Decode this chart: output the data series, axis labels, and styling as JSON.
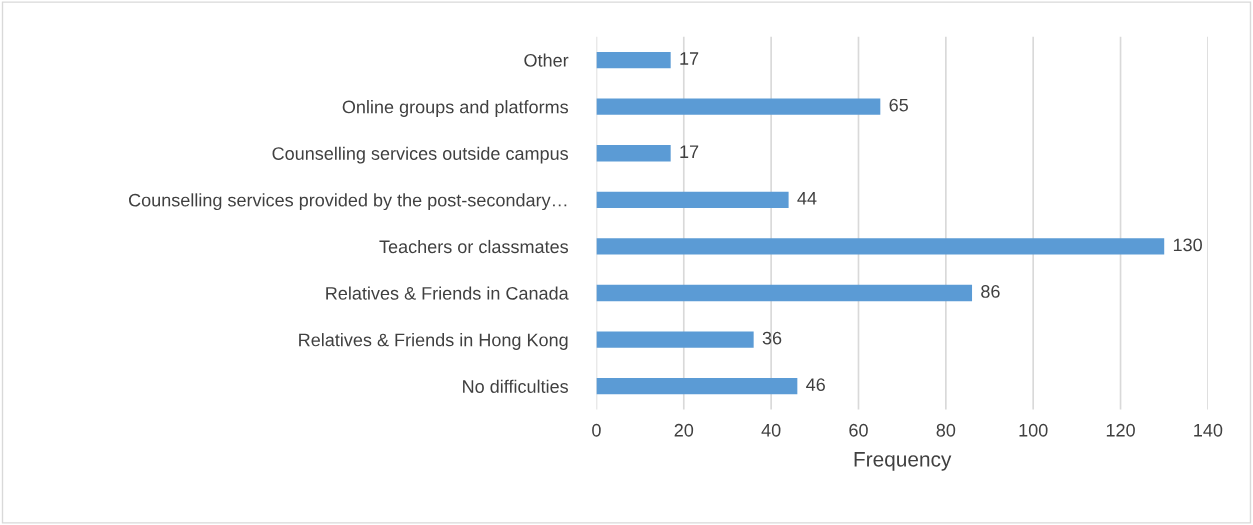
{
  "chart_data": {
    "type": "bar",
    "orientation": "horizontal",
    "xlabel": "Frequency",
    "categories": [
      "Other",
      "Online groups and platforms",
      "Counselling services outside campus",
      "Counselling services provided by the post-secondary…",
      "Teachers or classmates",
      "Relatives & Friends in Canada",
      "Relatives & Friends in Hong Kong",
      "No difficulties"
    ],
    "values": [
      17,
      65,
      17,
      44,
      130,
      86,
      36,
      46
    ],
    "color": "#5b9bd5",
    "xlim": [
      0,
      140
    ],
    "xticks": [
      0,
      20,
      40,
      60,
      80,
      100,
      120,
      140
    ],
    "grid": "x",
    "data_labels": true
  }
}
